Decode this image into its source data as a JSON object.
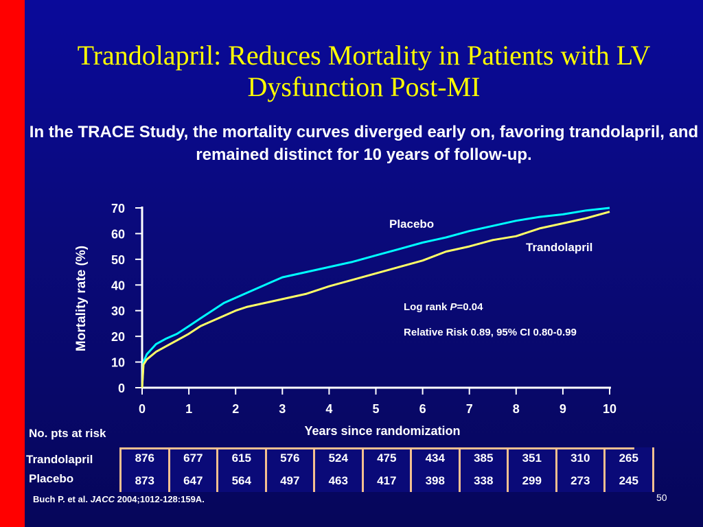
{
  "slide": {
    "title": "Trandolapril: Reduces Mortality in Patients with LV Dysfunction Post-MI",
    "subtitle": "In the TRACE Study, the mortality curves diverged early on, favoring trandolapril, and remained distinct for 10 years of follow-up.",
    "page_number": "50",
    "colors": {
      "background": "#0a0a8a",
      "side_bar": "#ff0000",
      "title": "#ffff00",
      "text": "#ffffff",
      "table_border": "#f4c090"
    }
  },
  "citation": {
    "authors": "Buch P. et al. ",
    "journal": "JACC",
    "details": " 2004;1012-128:159A."
  },
  "chart_data": {
    "type": "line",
    "xlabel": "Years since randomization",
    "ylabel": "Mortality rate (%)",
    "xlim": [
      0,
      10
    ],
    "ylim": [
      0,
      70
    ],
    "x_ticks": [
      0,
      1,
      2,
      3,
      4,
      5,
      6,
      7,
      8,
      9,
      10
    ],
    "y_ticks": [
      0,
      10,
      20,
      30,
      40,
      50,
      60,
      70
    ],
    "grid": false,
    "series": [
      {
        "name": "Placebo",
        "color": "#00ffff",
        "x": [
          0,
          0.03,
          0.1,
          0.2,
          0.3,
          0.5,
          0.75,
          1,
          1.25,
          1.5,
          1.75,
          2,
          2.25,
          2.5,
          2.75,
          3,
          3.5,
          4,
          4.5,
          5,
          5.5,
          6,
          6.5,
          7,
          7.5,
          8,
          8.5,
          9,
          9.5,
          10
        ],
        "y": [
          0,
          10,
          13,
          15,
          17,
          19,
          21,
          24,
          27,
          30,
          33,
          35,
          37,
          39,
          41,
          43,
          45,
          47,
          49,
          51.5,
          54,
          56.5,
          58.5,
          61,
          63,
          65,
          66.5,
          67.5,
          69,
          70
        ]
      },
      {
        "name": "Trandolapril",
        "color": "#ffff66",
        "x": [
          0,
          0.03,
          0.1,
          0.2,
          0.3,
          0.5,
          0.75,
          1,
          1.25,
          1.5,
          1.75,
          2,
          2.25,
          2.5,
          2.75,
          3,
          3.5,
          4,
          4.5,
          5,
          5.5,
          6,
          6.5,
          7,
          7.5,
          8,
          8.5,
          9,
          9.5,
          10
        ],
        "y": [
          0,
          9,
          11,
          12.5,
          14,
          16,
          18.5,
          21,
          24,
          26,
          28,
          30,
          31.5,
          32.5,
          33.5,
          34.5,
          36.5,
          39.5,
          42,
          44.5,
          47,
          49.5,
          53,
          55,
          57.5,
          59,
          62,
          64,
          66,
          68.5
        ]
      }
    ],
    "series_labels": {
      "placebo": "Placebo",
      "trandolapril": "Trandolapril"
    },
    "annotations": {
      "log_rank_prefix": "Log rank ",
      "log_rank_p": "P",
      "log_rank_value": "=0.04",
      "relative_risk": "Relative Risk 0.89, 95% CI 0.80-0.99"
    }
  },
  "risk_table": {
    "header": "No. pts at risk",
    "rows": [
      {
        "label": "Trandolapril",
        "values": [
          "876",
          "677",
          "615",
          "576",
          "524",
          "475",
          "434",
          "385",
          "351",
          "310",
          "265"
        ]
      },
      {
        "label": "Placebo",
        "values": [
          "873",
          "647",
          "564",
          "497",
          "463",
          "417",
          "398",
          "338",
          "299",
          "273",
          "245"
        ]
      }
    ]
  }
}
